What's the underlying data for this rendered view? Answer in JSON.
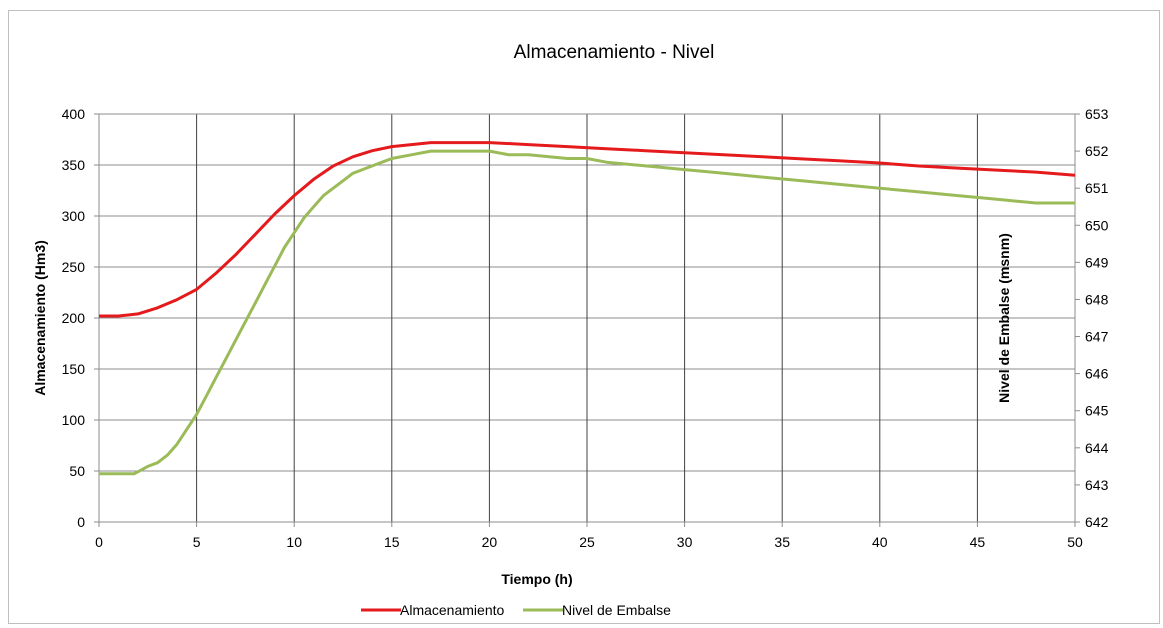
{
  "chart_data": {
    "type": "line",
    "title": "Almacenamiento - Nivel",
    "xlabel": "Tiempo (h)",
    "ylabel": "Almacenamiento (Hm3)",
    "y2label": "Nivel de Embalse (msnm)",
    "xlim": [
      0,
      50
    ],
    "ylim": [
      0,
      400
    ],
    "y2lim": [
      642,
      653
    ],
    "xticks": [
      "0",
      "5",
      "10",
      "15",
      "20",
      "25",
      "30",
      "35",
      "40",
      "45",
      "50"
    ],
    "yticks": [
      "0",
      "50",
      "100",
      "150",
      "200",
      "250",
      "300",
      "350",
      "400"
    ],
    "y2ticks": [
      "642",
      "643",
      "644",
      "645",
      "646",
      "647",
      "648",
      "649",
      "650",
      "651",
      "652",
      "653"
    ],
    "grid": {
      "vertical": true,
      "horizontal": true
    },
    "legend_position": "bottom",
    "series": [
      {
        "name": "Almacenamiento",
        "axis": "left",
        "color": "#e41a1c",
        "x": [
          0,
          1,
          2,
          3,
          4,
          5,
          6,
          7,
          8,
          9,
          10,
          11,
          12,
          13,
          14,
          15,
          16,
          17,
          18,
          19,
          20,
          22,
          24,
          26,
          28,
          30,
          32,
          34,
          36,
          38,
          40,
          42,
          44,
          46,
          48,
          50
        ],
        "y": [
          202,
          202,
          204,
          210,
          218,
          228,
          244,
          262,
          282,
          302,
          320,
          336,
          349,
          358,
          364,
          368,
          370,
          372,
          372,
          372,
          372,
          370,
          368,
          366,
          364,
          362,
          360,
          358,
          356,
          354,
          352,
          349,
          347,
          345,
          343,
          340
        ]
      },
      {
        "name": "Nivel de Embalse",
        "axis": "right",
        "color": "#9bbb59",
        "x": [
          0,
          1,
          1.8,
          2.5,
          3,
          3.5,
          4,
          4.5,
          5,
          5.5,
          6,
          6.5,
          7,
          7.5,
          8,
          8.5,
          9,
          9.5,
          10,
          10.5,
          11,
          11.5,
          12,
          12.5,
          13,
          13.5,
          14,
          14.5,
          15,
          16,
          17,
          18,
          19,
          20,
          21,
          22,
          24,
          25,
          26,
          28,
          30,
          32,
          34,
          36,
          38,
          40,
          42,
          44,
          46,
          48,
          50
        ],
        "y": [
          643.3,
          643.3,
          643.3,
          643.5,
          643.6,
          643.8,
          644.1,
          644.5,
          644.9,
          645.4,
          645.9,
          646.4,
          646.9,
          647.4,
          647.9,
          648.4,
          648.9,
          649.4,
          649.8,
          650.2,
          650.5,
          650.8,
          651.0,
          651.2,
          651.4,
          651.5,
          651.6,
          651.7,
          651.8,
          651.9,
          652.0,
          652.0,
          652.0,
          652.0,
          651.9,
          651.9,
          651.8,
          651.8,
          651.7,
          651.6,
          651.5,
          651.4,
          651.3,
          651.2,
          651.1,
          651.0,
          650.9,
          650.8,
          650.7,
          650.6,
          650.6
        ]
      }
    ]
  }
}
